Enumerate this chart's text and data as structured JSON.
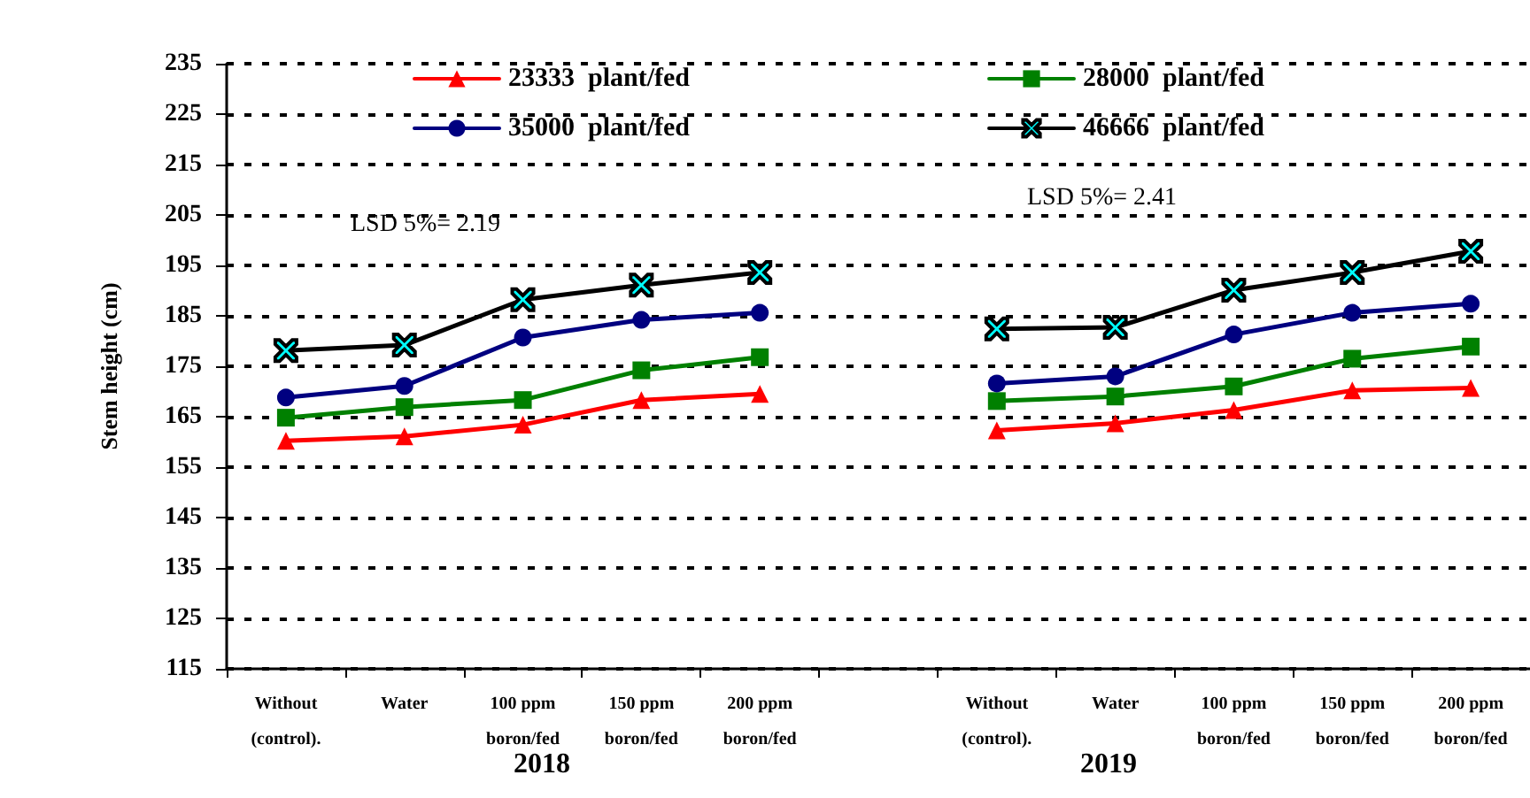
{
  "chart_data": {
    "type": "line",
    "ylabel": "Stem height (cm)",
    "categories": [
      "Without\n(control).",
      "Water",
      "100 ppm\nboron/fed",
      "150 ppm\nboron/fed",
      "200 ppm\nboron/fed",
      null,
      "Without\n(control).",
      "Water",
      "100 ppm\nboron/fed",
      "150 ppm\nboron/fed",
      "200 ppm\nboron/fed"
    ],
    "series": [
      {
        "name": "23333  plant/fed",
        "color": "#ff0000",
        "marker": "triangle",
        "values": [
          160.2,
          161.1,
          163.4,
          168.3,
          169.5,
          null,
          162.3,
          163.7,
          166.3,
          170.2,
          170.7
        ]
      },
      {
        "name": "28000  plant/fed",
        "color": "#008000",
        "marker": "square",
        "values": [
          164.8,
          166.9,
          168.3,
          174.2,
          176.8,
          null,
          168.1,
          169.0,
          171.0,
          176.5,
          178.9
        ]
      },
      {
        "name": "35000  plant/fed",
        "color": "#000080",
        "marker": "circle",
        "values": [
          168.8,
          171.1,
          180.7,
          184.2,
          185.6,
          null,
          171.6,
          173.0,
          181.3,
          185.6,
          187.4
        ]
      },
      {
        "name": "46666  plant/fed",
        "color": "#000000",
        "marker": "cross",
        "values": [
          178.1,
          179.2,
          188.2,
          191.1,
          193.6,
          null,
          182.4,
          182.7,
          190.1,
          193.6,
          197.8
        ]
      }
    ],
    "ylim": [
      115,
      235
    ],
    "yticks": [
      115,
      125,
      135,
      145,
      155,
      165,
      175,
      185,
      195,
      205,
      215,
      225,
      235
    ],
    "grid": "y",
    "legend": "top",
    "annotations": [
      "LSD 5%= 2.19",
      "LSD 5%= 2.41",
      "2018",
      "2019"
    ]
  }
}
